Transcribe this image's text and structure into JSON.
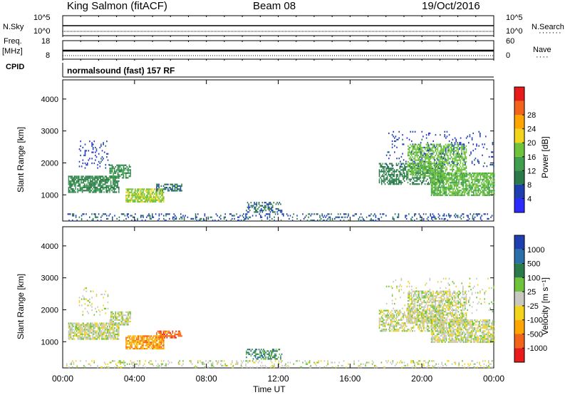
{
  "header": {
    "station": "King Salmon (fitACF)",
    "beam": "Beam 08",
    "date": "19/Oct/2016"
  },
  "strip_nsky": {
    "label": "N.Sky",
    "right_label": "N.Search",
    "left_ticks": [
      "10^5",
      "10^0"
    ],
    "right_ticks": [
      "10^5",
      "10^0"
    ]
  },
  "strip_freq": {
    "label": "Freq.",
    "unit": "[MHz]",
    "right_label": "Nave",
    "left_ticks": [
      "18",
      "8"
    ],
    "right_ticks": [
      "60",
      "0"
    ]
  },
  "cpid": {
    "label": "CPID",
    "value": "normalsound (fast) 157 RF"
  },
  "colors": {
    "power": [
      "#2b2bff",
      "#1f3fb0",
      "#2a7a4a",
      "#3f9f4f",
      "#6fc33a",
      "#f2d41a",
      "#ffa500",
      "#f2641a",
      "#e81a1a"
    ],
    "velocity": [
      "#1f3fb0",
      "#2a6faa",
      "#2a7a4a",
      "#6fc33a",
      "#c8c8c0",
      "#f2d41a",
      "#ffa500",
      "#f2641a",
      "#e81a1a"
    ]
  },
  "chart_data": [
    {
      "type": "heatmap",
      "panel": "power",
      "ylabel": "Slant Range [km]",
      "ylim": [
        180,
        4600
      ],
      "yticks": [
        "1000",
        "2000",
        "3000",
        "4000"
      ],
      "colorbar_label": "Power [dB]",
      "colorbar_ticks": [
        "4",
        "8",
        "12",
        "16",
        "20",
        "24",
        "28"
      ],
      "colorbar_range": [
        0,
        31
      ],
      "regions": [
        {
          "t0": 0.3,
          "t1": 3.1,
          "r0": 1100,
          "r1": 1600,
          "level": 10,
          "density": 0.75
        },
        {
          "t0": 2.6,
          "t1": 3.8,
          "r0": 1550,
          "r1": 1950,
          "level": 11,
          "density": 0.65
        },
        {
          "t0": 0.9,
          "t1": 2.6,
          "r0": 1850,
          "r1": 2700,
          "level": 5,
          "density": 0.12
        },
        {
          "t0": 3.5,
          "t1": 5.6,
          "r0": 800,
          "r1": 1200,
          "level": 17,
          "density": 0.8
        },
        {
          "t0": 5.2,
          "t1": 6.6,
          "r0": 1150,
          "r1": 1350,
          "level": 7,
          "density": 0.6
        },
        {
          "t0": 10.2,
          "t1": 12.2,
          "r0": 450,
          "r1": 780,
          "level": 7,
          "density": 0.4
        },
        {
          "t0": 0.2,
          "t1": 23.9,
          "r0": 180,
          "r1": 420,
          "level": 6,
          "density": 0.22
        },
        {
          "t0": 17.6,
          "t1": 21.2,
          "r0": 1350,
          "r1": 2000,
          "level": 9,
          "density": 0.55
        },
        {
          "t0": 19.2,
          "t1": 22.5,
          "r0": 1600,
          "r1": 2600,
          "level": 15,
          "density": 0.6
        },
        {
          "t0": 20.5,
          "t1": 24.0,
          "r0": 1000,
          "r1": 1700,
          "level": 14,
          "density": 0.75
        },
        {
          "t0": 18.0,
          "t1": 24.0,
          "r0": 1900,
          "r1": 3000,
          "level": 5,
          "density": 0.08
        }
      ]
    },
    {
      "type": "heatmap",
      "panel": "velocity",
      "xlabel": "Time UT",
      "ylabel": "Slant Range [km]",
      "ylim": [
        180,
        4600
      ],
      "yticks": [
        "1000",
        "2000",
        "3000",
        "4000"
      ],
      "xticks": [
        "00:00",
        "04:00",
        "08:00",
        "12:00",
        "16:00",
        "20:00",
        "00:00"
      ],
      "xlim": [
        0,
        24
      ],
      "colorbar_label": "Velocity [m s⁻¹]",
      "colorbar_ticks": [
        "1000",
        "500",
        "100",
        "25",
        "-25",
        "-100",
        "-500",
        "-1000"
      ],
      "regions": [
        {
          "t0": 0.3,
          "t1": 3.1,
          "r0": 1100,
          "r1": 1600,
          "level": 4,
          "density": 0.8
        },
        {
          "t0": 2.6,
          "t1": 3.8,
          "r0": 1550,
          "r1": 1950,
          "level": 4,
          "density": 0.65
        },
        {
          "t0": 0.9,
          "t1": 2.6,
          "r0": 1850,
          "r1": 2700,
          "level": 4,
          "density": 0.12
        },
        {
          "t0": 3.5,
          "t1": 5.6,
          "r0": 800,
          "r1": 1200,
          "level": 6,
          "density": 0.85
        },
        {
          "t0": 5.2,
          "t1": 6.6,
          "r0": 1150,
          "r1": 1350,
          "level": 7,
          "density": 0.6
        },
        {
          "t0": 10.2,
          "t1": 12.2,
          "r0": 450,
          "r1": 780,
          "level": 2,
          "density": 0.45
        },
        {
          "t0": 0.2,
          "t1": 23.9,
          "r0": 180,
          "r1": 420,
          "level": 4,
          "density": 0.22
        },
        {
          "t0": 17.6,
          "t1": 21.2,
          "r0": 1350,
          "r1": 2000,
          "level": 4,
          "density": 0.55
        },
        {
          "t0": 19.2,
          "t1": 22.5,
          "r0": 1600,
          "r1": 2600,
          "level": 4,
          "density": 0.6
        },
        {
          "t0": 20.5,
          "t1": 24.0,
          "r0": 1000,
          "r1": 1700,
          "level": 4,
          "density": 0.75
        },
        {
          "t0": 18.0,
          "t1": 24.0,
          "r0": 1900,
          "r1": 3000,
          "level": 4,
          "density": 0.08
        }
      ]
    }
  ]
}
